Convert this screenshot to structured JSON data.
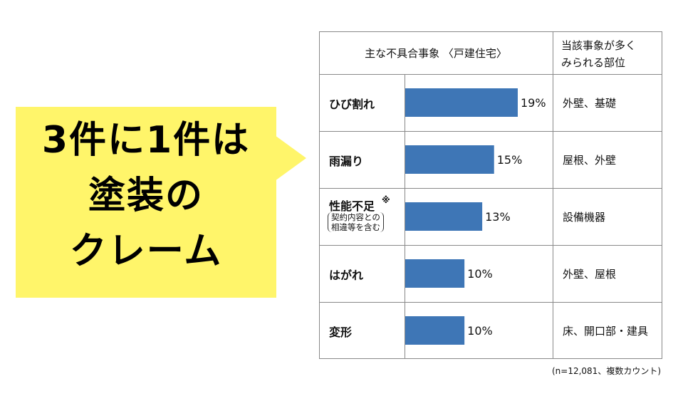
{
  "callout": {
    "lines": [
      "3件に1件は",
      "塗装の",
      "クレーム"
    ],
    "background_color": "#fff56a"
  },
  "table": {
    "header_left": "主な不具合事象 〈戸建住宅〉",
    "header_right_line1": "当該事象が多く",
    "header_right_line2": "みられる部位",
    "note_mark": "※",
    "note_sub_line1": "契約内容との",
    "note_sub_line2": "相違等を含む",
    "source": "(n=12,081、複数カウント)"
  },
  "chart_data": {
    "type": "bar",
    "orientation": "horizontal",
    "categories": [
      "ひび割れ",
      "雨漏り",
      "性能不足",
      "はがれ",
      "変形"
    ],
    "values": [
      19,
      15,
      13,
      10,
      10
    ],
    "value_labels": [
      "19%",
      "15%",
      "13%",
      "10%",
      "10%"
    ],
    "locations": [
      "外壁、基礎",
      "屋根、外壁",
      "設備機器",
      "外壁、屋根",
      "床、開口部・建具"
    ],
    "unit": "%",
    "bar_color": "#3e76b6",
    "xlim": [
      0,
      19
    ]
  }
}
